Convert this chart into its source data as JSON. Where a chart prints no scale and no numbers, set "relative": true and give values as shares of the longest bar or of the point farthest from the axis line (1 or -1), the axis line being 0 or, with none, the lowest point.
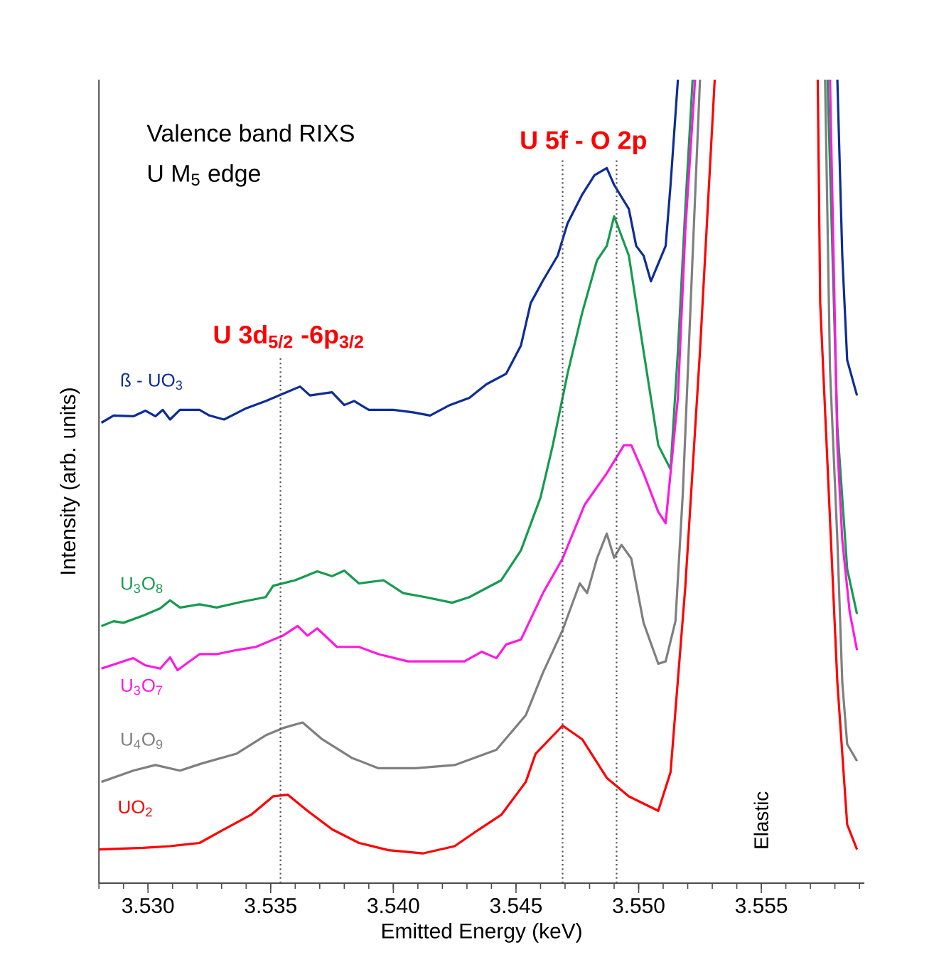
{
  "chart_data": {
    "type": "line",
    "relative": true,
    "title": "Valence band RIXS",
    "subtitle": "U M$_{5}$ edge",
    "xlabel": "Emitted Energy (keV)",
    "ylabel": "Intensity (arb. units)",
    "xlim": [
      3.528,
      3.5592
    ],
    "xticks": [
      {
        "value": 3.53,
        "label": "3.530"
      },
      {
        "value": 3.535,
        "label": "3.535"
      },
      {
        "value": 3.54,
        "label": "3.540"
      },
      {
        "value": 3.545,
        "label": "3.545"
      },
      {
        "value": 3.55,
        "label": "3.550"
      },
      {
        "value": 3.555,
        "label": "3.555"
      }
    ],
    "grid": false,
    "legend": false,
    "marker": "none",
    "ref_lines": [
      {
        "axis": "x",
        "value": 3.5354,
        "color": "#555555",
        "line_style": "dotted"
      },
      {
        "axis": "x",
        "value": 3.5469,
        "color": "#555555",
        "line_style": "dotted"
      },
      {
        "axis": "x",
        "value": 3.5491,
        "color": "#555555",
        "line_style": "dotted"
      }
    ],
    "annotations": [
      "**U 3d$_{5/2}$ -6p$_{3/2}$**",
      "**U 5f - O 2p**",
      "Elastic"
    ],
    "series": [
      {
        "name": "ß - UO$_{3}$",
        "color": "#0d2d96",
        "x": [
          3.5281,
          3.5286,
          3.5294,
          3.5299,
          3.5303,
          3.5306,
          3.5309,
          3.5313,
          3.5321,
          3.5325,
          3.5331,
          3.534,
          3.5348,
          3.5355,
          3.5362,
          3.5366,
          3.5375,
          3.538,
          3.5384,
          3.539,
          3.54,
          3.5408,
          3.5415,
          3.5423,
          3.5431,
          3.5438,
          3.5446,
          3.5452,
          3.5456,
          3.5461,
          3.5467,
          3.5471,
          3.5477,
          3.5482,
          3.5487,
          3.549,
          3.5496,
          3.5499,
          3.5502,
          3.5505,
          3.5511,
          3.5513,
          3.5516,
          3.555,
          3.5581,
          3.5583,
          3.5585,
          3.5589
        ],
        "values": [
          0.573,
          0.582,
          0.581,
          0.588,
          0.581,
          0.589,
          0.577,
          0.589,
          0.589,
          0.582,
          0.577,
          0.591,
          0.6,
          0.609,
          0.618,
          0.607,
          0.611,
          0.595,
          0.6,
          0.589,
          0.589,
          0.586,
          0.582,
          0.595,
          0.604,
          0.621,
          0.634,
          0.669,
          0.722,
          0.75,
          0.781,
          0.821,
          0.857,
          0.881,
          0.89,
          0.869,
          0.839,
          0.793,
          0.781,
          0.749,
          0.793,
          0.869,
          1,
          null,
          1,
          0.781,
          0.651,
          0.607
        ]
      },
      {
        "name": "U$_{3}$O$_{8}$",
        "color": "#169b4f",
        "x": [
          3.5281,
          3.5286,
          3.529,
          3.5298,
          3.5305,
          3.5309,
          3.5313,
          3.5321,
          3.5328,
          3.5338,
          3.5348,
          3.5351,
          3.536,
          3.5369,
          3.5375,
          3.538,
          3.5386,
          3.5396,
          3.5404,
          3.5413,
          3.5424,
          3.5431,
          3.5444,
          3.5452,
          3.546,
          3.5465,
          3.5471,
          3.5477,
          3.5483,
          3.5487,
          3.549,
          3.5496,
          3.5502,
          3.5508,
          3.5513,
          3.5516,
          3.5519,
          3.5522,
          3.555,
          3.5577,
          3.5581,
          3.5585,
          3.5589
        ],
        "values": [
          0.32,
          0.326,
          0.324,
          0.333,
          0.342,
          0.352,
          0.343,
          0.347,
          0.343,
          0.35,
          0.356,
          0.37,
          0.377,
          0.388,
          0.382,
          0.389,
          0.373,
          0.377,
          0.361,
          0.356,
          0.349,
          0.356,
          0.377,
          0.414,
          0.48,
          0.545,
          0.634,
          0.71,
          0.775,
          0.793,
          0.83,
          0.781,
          0.662,
          0.545,
          0.515,
          0.662,
          0.839,
          1,
          null,
          1,
          0.568,
          0.391,
          0.335
        ]
      },
      {
        "name": "U$_{3}$O$_{7}$",
        "color": "#ff19e0",
        "x": [
          3.5281,
          3.5294,
          3.5299,
          3.5305,
          3.5309,
          3.5312,
          3.5321,
          3.5328,
          3.5336,
          3.5344,
          3.5351,
          3.5355,
          3.5361,
          3.5365,
          3.5369,
          3.5377,
          3.5386,
          3.5394,
          3.5406,
          3.5417,
          3.5429,
          3.5436,
          3.5442,
          3.5446,
          3.5452,
          3.5461,
          3.5469,
          3.5478,
          3.5487,
          3.5494,
          3.5497,
          3.5502,
          3.5508,
          3.5511,
          3.5516,
          3.5519,
          3.5523,
          3.555,
          3.5578,
          3.5581,
          3.5583,
          3.5586,
          3.5589
        ],
        "values": [
          0.267,
          0.28,
          0.271,
          0.267,
          0.281,
          0.265,
          0.285,
          0.285,
          0.29,
          0.294,
          0.303,
          0.308,
          0.32,
          0.308,
          0.317,
          0.294,
          0.294,
          0.285,
          0.276,
          0.276,
          0.276,
          0.288,
          0.28,
          0.297,
          0.303,
          0.361,
          0.404,
          0.471,
          0.51,
          0.545,
          0.545,
          0.51,
          0.462,
          0.448,
          0.604,
          0.811,
          1,
          null,
          1,
          0.545,
          0.427,
          0.338,
          0.29
        ]
      },
      {
        "name": "U$_{4}$O$_{9}$",
        "color": "#7f7f7f",
        "x": [
          3.5281,
          3.5294,
          3.5303,
          3.5313,
          3.5322,
          3.5336,
          3.5348,
          3.5355,
          3.5363,
          3.5371,
          3.5383,
          3.5394,
          3.5409,
          3.5425,
          3.5442,
          3.5454,
          3.5461,
          3.5469,
          3.5476,
          3.5479,
          3.5483,
          3.5487,
          3.549,
          3.5493,
          3.5497,
          3.5502,
          3.5508,
          3.5511,
          3.5515,
          3.5518,
          3.5522,
          3.5525,
          3.555,
          3.5576,
          3.5578,
          3.5581,
          3.5583,
          3.5585,
          3.5589
        ],
        "values": [
          0.126,
          0.14,
          0.147,
          0.14,
          0.149,
          0.161,
          0.184,
          0.193,
          0.2,
          0.179,
          0.156,
          0.143,
          0.143,
          0.147,
          0.166,
          0.209,
          0.262,
          0.315,
          0.373,
          0.361,
          0.404,
          0.435,
          0.405,
          0.421,
          0.404,
          0.324,
          0.273,
          0.276,
          0.326,
          0.485,
          0.781,
          1,
          null,
          1,
          0.639,
          0.427,
          0.25,
          0.173,
          0.152
        ]
      },
      {
        "name": "UO$_{2}$",
        "color": "#ff0000",
        "x": [
          3.528,
          3.5298,
          3.5309,
          3.5321,
          3.5331,
          3.5342,
          3.5351,
          3.5357,
          3.5365,
          3.5375,
          3.5386,
          3.5398,
          3.5412,
          3.5425,
          3.5435,
          3.5444,
          3.5454,
          3.5458,
          3.5469,
          3.5477,
          3.5487,
          3.5496,
          3.5508,
          3.5513,
          3.5519,
          3.5525,
          3.5531,
          3.555,
          3.5573,
          3.5574,
          3.5581,
          3.5585,
          3.5589
        ],
        "values": [
          0.042,
          0.044,
          0.046,
          0.05,
          0.067,
          0.085,
          0.108,
          0.11,
          0.09,
          0.067,
          0.05,
          0.041,
          0.037,
          0.046,
          0.067,
          0.085,
          0.126,
          0.161,
          0.196,
          0.179,
          0.131,
          0.108,
          0.09,
          0.138,
          0.368,
          0.662,
          1,
          null,
          1,
          0.722,
          0.25,
          0.073,
          0.042
        ]
      }
    ]
  }
}
